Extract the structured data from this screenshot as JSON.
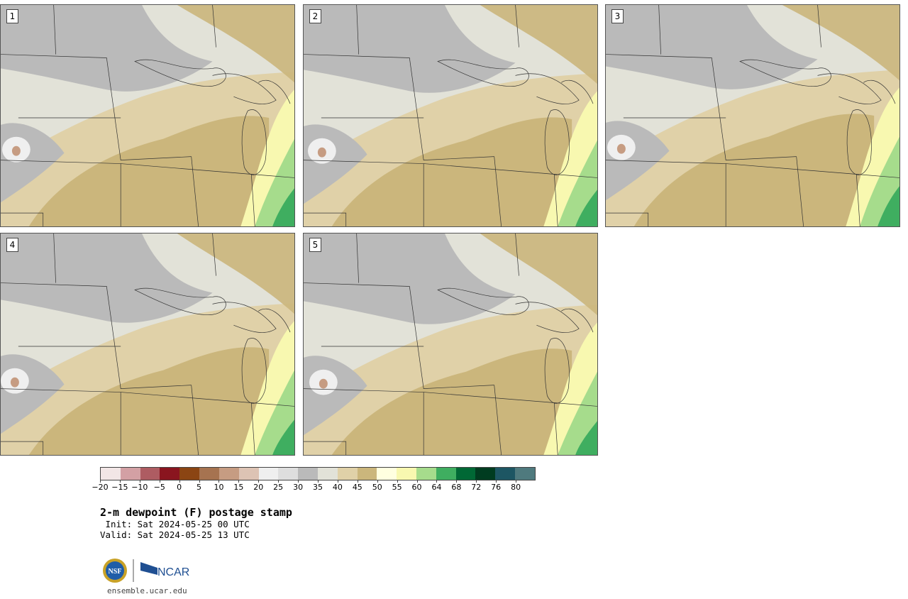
{
  "title": "2-m dewpoint (F) postage stamp",
  "init": " Init: Sat 2024-05-25 00 UTC",
  "valid": "Valid: Sat 2024-05-25 13 UTC",
  "website": "ensemble.ucar.edu",
  "logos": {
    "nsf": "NSF",
    "ncar": "NCAR"
  },
  "panels": [
    {
      "label": "1"
    },
    {
      "label": "2"
    },
    {
      "label": "3"
    },
    {
      "label": "4"
    },
    {
      "label": "5"
    }
  ],
  "colorbar": {
    "colors": [
      "#f2e6e6",
      "#d3a0a4",
      "#ae5c62",
      "#8a151f",
      "#8b4513",
      "#a67350",
      "#c69c82",
      "#ddc3b4",
      "#efefef",
      "#dedede",
      "#bababa",
      "#e2e2d8",
      "#e0d1a8",
      "#cbb67c",
      "#ffffe0",
      "#f8f8b0",
      "#a6dc8c",
      "#3fae60",
      "#006835",
      "#003c20",
      "#1d5663",
      "#4f7a7e"
    ],
    "tick_labels": [
      "−20",
      "−15",
      "−10",
      "−5",
      "0",
      "5",
      "10",
      "15",
      "20",
      "25",
      "30",
      "35",
      "40",
      "45",
      "50",
      "55",
      "60",
      "64",
      "68",
      "72",
      "76",
      "80"
    ]
  }
}
